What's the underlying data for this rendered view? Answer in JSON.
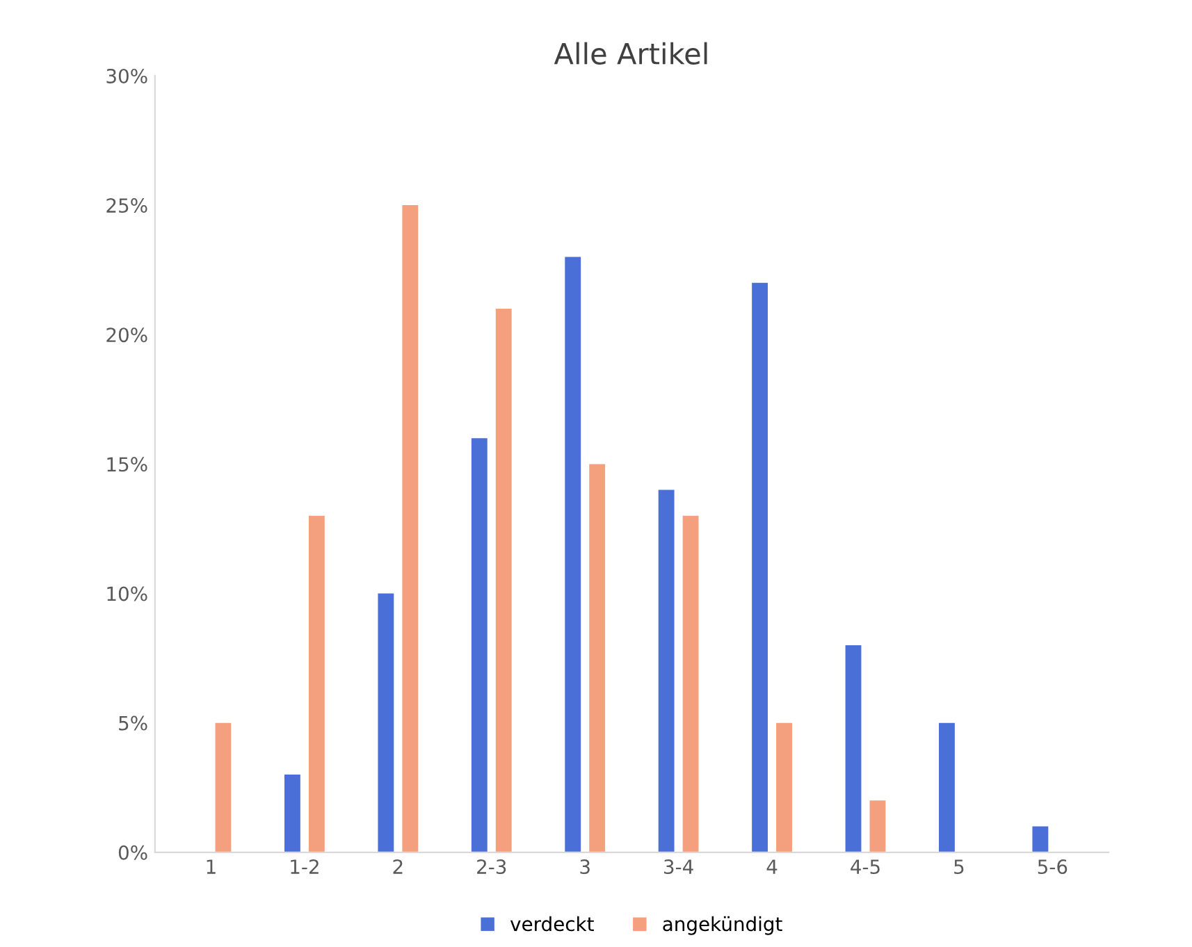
{
  "chart_data": {
    "type": "bar",
    "title": "Alle Artikel",
    "categories": [
      "1",
      "1-2",
      "2",
      "2-3",
      "3",
      "3-4",
      "4",
      "4-5",
      "5",
      "5-6"
    ],
    "series": [
      {
        "name": "verdeckt",
        "color": "#4a6fd6",
        "values": [
          0,
          3,
          10,
          16,
          23,
          14,
          22,
          8,
          5,
          1
        ]
      },
      {
        "name": "angekündigt",
        "color": "#f4a07e",
        "values": [
          5,
          13,
          25,
          21,
          15,
          13,
          5,
          2,
          0,
          0
        ]
      }
    ],
    "ylim": [
      0,
      30
    ],
    "yticks": [
      {
        "value": 0,
        "label": "0%"
      },
      {
        "value": 5,
        "label": "5%"
      },
      {
        "value": 10,
        "label": "10%"
      },
      {
        "value": 15,
        "label": "15%"
      },
      {
        "value": 20,
        "label": "20%"
      },
      {
        "value": 25,
        "label": "25%"
      },
      {
        "value": 30,
        "label": "30%"
      }
    ],
    "grid": false,
    "legend": "bottom"
  }
}
